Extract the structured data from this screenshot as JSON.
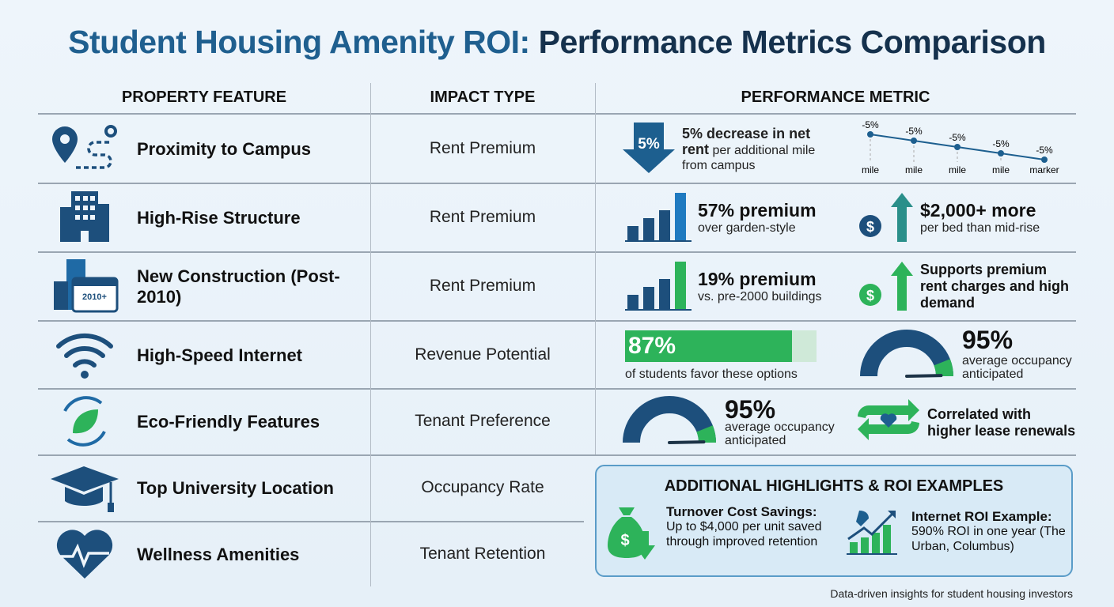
{
  "title": {
    "part1": "Student Housing Amenity ROI:",
    "part2": "Performance Metrics Comparison"
  },
  "headers": [
    "PROPERTY FEATURE",
    "IMPACT TYPE",
    "PERFORMANCE METRIC"
  ],
  "rows": [
    {
      "feature": "Proximity to Campus",
      "impact": "Rent Premium",
      "icon": "map-pin-route-icon"
    },
    {
      "feature": "High-Rise Structure",
      "impact": "Rent Premium",
      "icon": "building-icon"
    },
    {
      "feature": "New Construction (Post-2010)",
      "impact": "Rent Premium",
      "icon": "building-calendar-icon",
      "badge": "2010+"
    },
    {
      "feature": "High-Speed Internet",
      "impact": "Revenue Potential",
      "icon": "wifi-icon"
    },
    {
      "feature": "Eco-Friendly Features",
      "impact": "Tenant Preference",
      "icon": "eco-leaf-icon"
    },
    {
      "feature": "Top University Location",
      "impact": "Occupancy Rate",
      "icon": "graduation-cap-icon"
    },
    {
      "feature": "Wellness Amenities",
      "impact": "Tenant Retention",
      "icon": "heart-pulse-icon"
    }
  ],
  "metrics": {
    "proximity": {
      "arrow_label": "5%",
      "text_bold": "5% decrease in net rent",
      "text_rest": " per additional mile from campus",
      "points": [
        {
          "label": "-5%",
          "x": "mile"
        },
        {
          "label": "-5%",
          "x": "mile"
        },
        {
          "label": "-5%",
          "x": "mile"
        },
        {
          "label": "-5%",
          "x": "mile"
        },
        {
          "label": "-5%",
          "x": "marker"
        }
      ]
    },
    "highrise": {
      "m1_big": "57% premium",
      "m1_sub": "over garden-style",
      "m2_big": "$2,000+ more",
      "m2_sub": "per bed than mid-rise"
    },
    "newcon": {
      "m1_big": "19% premium",
      "m1_sub": "vs. pre-2000 buildings",
      "m2_text": "Supports premium rent charges and high demand"
    },
    "internet": {
      "bar_value": "87%",
      "bar_fraction": 0.87,
      "bar_sub": "of students favor these options",
      "gauge_value": "95%",
      "gauge_fraction": 0.95,
      "gauge_sub": "average occupancy anticipated"
    },
    "eco": {
      "gauge_value": "95%",
      "gauge_fraction": 0.95,
      "gauge_sub": "average occupancy anticipated",
      "m2_text": "Correlated with higher lease renewals"
    }
  },
  "highlights": {
    "title": "ADDITIONAL HIGHLIGHTS & ROI EXAMPLES",
    "items": [
      {
        "title": "Turnover Cost Savings:",
        "text": "Up to $4,000 per unit saved through improved retention"
      },
      {
        "title": "Internet ROI Example:",
        "text": "590% ROI in one year (The Urban, Columbus)"
      }
    ]
  },
  "footer": "Data-driven insights for student housing investors",
  "colors": {
    "navy": "#1d4f7c",
    "blue": "#1f6aa5",
    "green": "#2db35a",
    "teal": "#2a8f8a",
    "title_blue": "#1f5f8f",
    "title_navy": "#15314d"
  }
}
